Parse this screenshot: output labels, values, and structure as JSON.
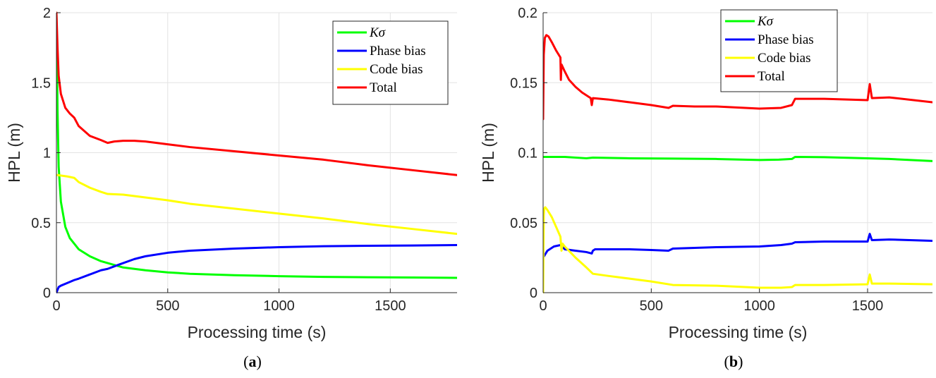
{
  "chart_data": [
    {
      "type": "line",
      "caption_letter": "a",
      "xlabel": "Processing time (s)",
      "ylabel": "HPL (m)",
      "xlim": [
        0,
        1800
      ],
      "ylim": [
        0,
        2
      ],
      "xticks": [
        0,
        500,
        1000,
        1500
      ],
      "xtick_labels": [
        "0",
        "500",
        "1000",
        "1500"
      ],
      "yticks": [
        0,
        0.5,
        1,
        1.5,
        2
      ],
      "ytick_labels": [
        "0",
        "0.5",
        "1",
        "1.5",
        "2"
      ],
      "grid": true,
      "legend_position": "top-right",
      "series": [
        {
          "name": "Kσ",
          "color": "#00ff00",
          "x": [
            0,
            5,
            10,
            20,
            40,
            60,
            100,
            150,
            200,
            300,
            400,
            500,
            600,
            800,
            1000,
            1200,
            1400,
            1600,
            1800
          ],
          "y": [
            2.0,
            1.3,
            0.9,
            0.65,
            0.47,
            0.39,
            0.31,
            0.26,
            0.225,
            0.18,
            0.16,
            0.145,
            0.135,
            0.125,
            0.118,
            0.113,
            0.11,
            0.108,
            0.106
          ]
        },
        {
          "name": "Phase bias",
          "color": "#0000ff",
          "x": [
            0,
            10,
            20,
            50,
            80,
            100,
            150,
            200,
            230,
            280,
            350,
            400,
            500,
            600,
            800,
            1000,
            1200,
            1400,
            1600,
            1800
          ],
          "y": [
            0.0,
            0.04,
            0.05,
            0.07,
            0.09,
            0.1,
            0.13,
            0.16,
            0.17,
            0.2,
            0.24,
            0.26,
            0.285,
            0.3,
            0.315,
            0.325,
            0.332,
            0.335,
            0.337,
            0.34
          ]
        },
        {
          "name": "Code bias",
          "color": "#ffff00",
          "x": [
            0,
            5,
            50,
            80,
            100,
            150,
            200,
            230,
            300,
            400,
            500,
            600,
            800,
            1000,
            1200,
            1400,
            1600,
            1800
          ],
          "y": [
            0.84,
            0.84,
            0.83,
            0.82,
            0.79,
            0.75,
            0.72,
            0.705,
            0.7,
            0.68,
            0.66,
            0.635,
            0.6,
            0.565,
            0.53,
            0.49,
            0.455,
            0.42
          ]
        },
        {
          "name": "Total",
          "color": "#ff0000",
          "x": [
            0,
            5,
            10,
            20,
            40,
            60,
            80,
            100,
            150,
            200,
            230,
            260,
            300,
            350,
            400,
            500,
            600,
            800,
            1000,
            1200,
            1400,
            1600,
            1800
          ],
          "y": [
            2.0,
            1.75,
            1.55,
            1.42,
            1.32,
            1.28,
            1.25,
            1.19,
            1.12,
            1.09,
            1.07,
            1.08,
            1.085,
            1.085,
            1.08,
            1.06,
            1.04,
            1.01,
            0.98,
            0.95,
            0.91,
            0.875,
            0.84
          ]
        }
      ]
    },
    {
      "type": "line",
      "caption_letter": "b",
      "xlabel": "Processing time (s)",
      "ylabel": "HPL (m)",
      "xlim": [
        0,
        1800
      ],
      "ylim": [
        0,
        0.2
      ],
      "xticks": [
        0,
        500,
        1000,
        1500
      ],
      "xtick_labels": [
        "0",
        "500",
        "1000",
        "1500"
      ],
      "yticks": [
        0,
        0.05,
        0.1,
        0.15,
        0.2
      ],
      "ytick_labels": [
        "0",
        "0.05",
        "0.1",
        "0.15",
        "0.2"
      ],
      "grid": true,
      "legend_position": "top-center",
      "series": [
        {
          "name": "Kσ",
          "color": "#00ff00",
          "x": [
            0,
            100,
            200,
            230,
            400,
            600,
            800,
            1000,
            1090,
            1150,
            1165,
            1300,
            1500,
            1600,
            1800
          ],
          "y": [
            0.097,
            0.097,
            0.096,
            0.0965,
            0.096,
            0.0958,
            0.0955,
            0.0948,
            0.095,
            0.0955,
            0.097,
            0.0968,
            0.096,
            0.0955,
            0.094
          ]
        },
        {
          "name": "Phase bias",
          "color": "#0000ff",
          "x": [
            0,
            20,
            50,
            80,
            100,
            150,
            200,
            225,
            230,
            240,
            300,
            400,
            500,
            580,
            600,
            700,
            800,
            1000,
            1100,
            1150,
            1165,
            1300,
            1500,
            1510,
            1520,
            1600,
            1800
          ],
          "y": [
            0.025,
            0.03,
            0.033,
            0.034,
            0.031,
            0.03,
            0.029,
            0.028,
            0.03,
            0.031,
            0.031,
            0.031,
            0.0305,
            0.03,
            0.0315,
            0.032,
            0.0325,
            0.033,
            0.034,
            0.035,
            0.036,
            0.0365,
            0.0365,
            0.042,
            0.0375,
            0.038,
            0.037
          ]
        },
        {
          "name": "Code bias",
          "color": "#ffff00",
          "x": [
            0,
            3,
            5,
            10,
            20,
            40,
            60,
            80,
            85,
            90,
            100,
            150,
            200,
            230,
            300,
            400,
            500,
            600,
            800,
            1000,
            1100,
            1150,
            1165,
            1300,
            1500,
            1510,
            1520,
            1600,
            1800
          ],
          "y": [
            0.0,
            0.055,
            0.06,
            0.061,
            0.059,
            0.054,
            0.047,
            0.04,
            0.03,
            0.035,
            0.033,
            0.025,
            0.018,
            0.0135,
            0.012,
            0.01,
            0.008,
            0.0055,
            0.005,
            0.0035,
            0.0035,
            0.004,
            0.0055,
            0.0055,
            0.006,
            0.013,
            0.0065,
            0.0065,
            0.006
          ]
        },
        {
          "name": "Total",
          "color": "#ff0000",
          "x": [
            0,
            3,
            8,
            15,
            25,
            40,
            60,
            80,
            82,
            85,
            100,
            120,
            150,
            180,
            220,
            225,
            230,
            300,
            400,
            500,
            580,
            600,
            700,
            800,
            1000,
            1100,
            1150,
            1165,
            1300,
            1500,
            1510,
            1520,
            1600,
            1800
          ],
          "y": [
            0.124,
            0.17,
            0.182,
            0.184,
            0.183,
            0.179,
            0.173,
            0.168,
            0.152,
            0.163,
            0.158,
            0.152,
            0.147,
            0.143,
            0.139,
            0.134,
            0.139,
            0.138,
            0.136,
            0.134,
            0.132,
            0.1335,
            0.133,
            0.133,
            0.1315,
            0.132,
            0.134,
            0.1385,
            0.1385,
            0.1375,
            0.149,
            0.139,
            0.1395,
            0.136
          ]
        }
      ]
    }
  ]
}
